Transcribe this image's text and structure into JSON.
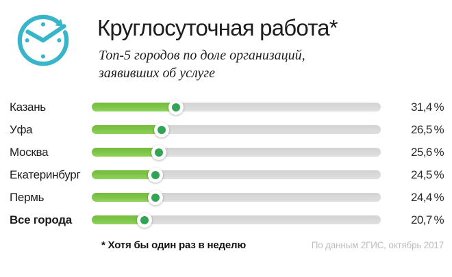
{
  "header": {
    "subtitle_line1": "Топ-5 городов по доле организаций,",
    "subtitle_line2": "заявивших об услуге",
    "icon": "clock-arrow-icon"
  },
  "chart_data": {
    "type": "bar",
    "orientation": "horizontal",
    "title": "Круглосуточная работа*",
    "subtitle": "Топ-5 городов по доле организаций, заявивших об услуге",
    "categories": [
      "Казань",
      "Уфа",
      "Москва",
      "Екатеринбург",
      "Пермь",
      "Все города"
    ],
    "values": [
      31.4,
      26.5,
      25.6,
      24.5,
      24.4,
      20.7
    ],
    "value_labels": [
      "31,4 %",
      "26,5 %",
      "25,6 %",
      "24,5 %",
      "24,4 %",
      "20,7 %"
    ],
    "unit": "%",
    "xlim": [
      0,
      100
    ],
    "grid": false,
    "legend": false,
    "bold_categories": [
      "Все города"
    ],
    "footnote": "* Хотя бы один раз в неделю",
    "source": "По данным 2ГИС, октябрь 2017"
  },
  "colors": {
    "teal": "#38b5c8",
    "bar_green": "#7ec34a",
    "knob_green": "#33a455",
    "track_gray": "#d9d9d9"
  }
}
